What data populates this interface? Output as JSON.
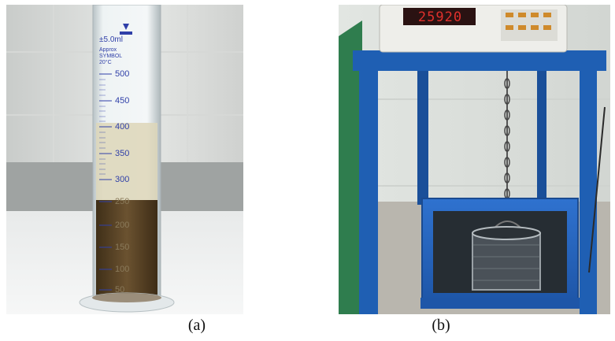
{
  "figure": {
    "panels": [
      {
        "id": "a",
        "caption": "(a)",
        "description_icon": "graduated-cylinder-photo",
        "cylinder": {
          "brand_text": "±5.0ml",
          "maker_line1": "Approx",
          "maker_line2": "SYMBOL",
          "maker_line3": "20°C",
          "scale_labels": [
            "500",
            "450",
            "400",
            "350",
            "300",
            "250",
            "200",
            "150",
            "100",
            "50"
          ],
          "colors": {
            "sediment": "#5a4426",
            "liquid": "#d9d2b4",
            "glass": "#e9eef0",
            "scale": "#2f3fa8"
          }
        }
      },
      {
        "id": "b",
        "caption": "(b)",
        "description_icon": "scale-with-suspended-basket-photo",
        "scale": {
          "display_reading": "25920",
          "colors": {
            "frame": "#1f5fb3",
            "display": "#c8201f",
            "tank": "#2b6cc9"
          }
        }
      }
    ]
  }
}
